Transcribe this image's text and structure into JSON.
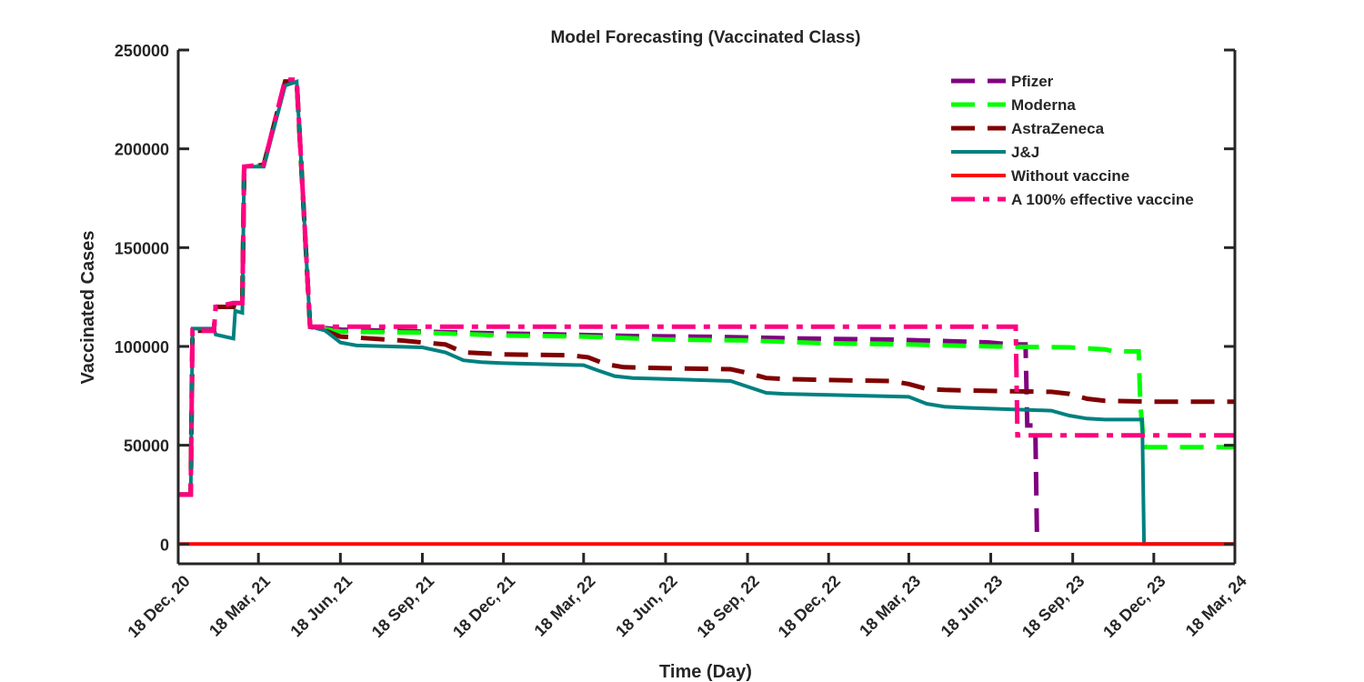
{
  "chart_data": {
    "type": "line",
    "title": "Model Forecasting (Vaccinated Class)",
    "xlabel": "Time (Day)",
    "ylabel": "Vaccinated Cases",
    "xlim": [
      0,
      1186
    ],
    "ylim": [
      -10000,
      250000
    ],
    "x_ticks": [
      {
        "x": 0,
        "label": "18 Dec, 20"
      },
      {
        "x": 90,
        "label": "18 Mar, 21"
      },
      {
        "x": 182,
        "label": "18 Jun, 21"
      },
      {
        "x": 274,
        "label": "18 Sep, 21"
      },
      {
        "x": 365,
        "label": "18 Dec, 21"
      },
      {
        "x": 455,
        "label": "18 Mar, 22"
      },
      {
        "x": 547,
        "label": "18 Jun, 22"
      },
      {
        "x": 639,
        "label": "18 Sep, 22"
      },
      {
        "x": 730,
        "label": "18 Dec, 22"
      },
      {
        "x": 820,
        "label": "18 Mar, 23"
      },
      {
        "x": 912,
        "label": "18 Jun, 23"
      },
      {
        "x": 1004,
        "label": "18 Sep, 23"
      },
      {
        "x": 1095,
        "label": "18 Dec, 23"
      },
      {
        "x": 1186,
        "label": "18 Mar, 24"
      }
    ],
    "y_ticks": [
      {
        "y": 0,
        "label": "0"
      },
      {
        "y": 50000,
        "label": "50000"
      },
      {
        "y": 100000,
        "label": "100000"
      },
      {
        "y": 150000,
        "label": "150000"
      },
      {
        "y": 200000,
        "label": "200000"
      },
      {
        "y": 250000,
        "label": "250000"
      }
    ],
    "legend_position": "top-right",
    "series": [
      {
        "name": "Pfizer",
        "color": "#800080",
        "style": "dashed",
        "x": [
          0,
          14,
          16,
          40,
          42,
          62,
          64,
          72,
          74,
          96,
          120,
          133,
          148,
          183,
          230,
          274,
          365,
          430,
          520,
          608,
          700,
          800,
          875,
          910,
          935,
          951,
          953,
          962,
          964
        ],
        "y": [
          25000,
          25000,
          108000,
          108000,
          120000,
          120000,
          120000,
          120000,
          190000,
          192000,
          234000,
          234000,
          110000,
          108500,
          108000,
          107500,
          106500,
          106000,
          105200,
          104800,
          104000,
          103500,
          102500,
          102000,
          101000,
          101000,
          60000,
          60000,
          0
        ]
      },
      {
        "name": "Moderna",
        "color": "#00ff00",
        "style": "dashed",
        "x": [
          0,
          14,
          16,
          40,
          42,
          62,
          64,
          72,
          74,
          96,
          120,
          133,
          148,
          183,
          274,
          365,
          455,
          547,
          639,
          730,
          820,
          912,
          1000,
          1040,
          1050,
          1078,
          1080,
          1084,
          1086,
          1186
        ],
        "y": [
          25000,
          25000,
          108000,
          108000,
          120000,
          120000,
          120000,
          120000,
          190000,
          192000,
          234000,
          234000,
          110000,
          107500,
          107000,
          105500,
          105000,
          103500,
          103000,
          101500,
          101000,
          100000,
          99500,
          98500,
          97500,
          97500,
          70000,
          50000,
          49000,
          49000
        ]
      },
      {
        "name": "AstraZeneca",
        "color": "#800000",
        "style": "dashed",
        "x": [
          0,
          14,
          16,
          40,
          42,
          62,
          64,
          72,
          74,
          96,
          120,
          133,
          148,
          165,
          182,
          250,
          274,
          300,
          320,
          365,
          440,
          460,
          480,
          500,
          547,
          620,
          640,
          660,
          680,
          730,
          800,
          820,
          840,
          860,
          912,
          980,
          1000,
          1020,
          1040,
          1095,
          1186
        ],
        "y": [
          25000,
          25000,
          108000,
          108000,
          120000,
          120000,
          122000,
          122000,
          190000,
          192000,
          234000,
          234000,
          110000,
          108000,
          105000,
          103000,
          102000,
          101000,
          97000,
          96000,
          95500,
          94500,
          91000,
          89500,
          89000,
          88500,
          86500,
          84000,
          83500,
          83000,
          82500,
          81000,
          78500,
          78000,
          77500,
          77000,
          76000,
          73500,
          72500,
          72000,
          72000
        ]
      },
      {
        "name": "J&J",
        "color": "#008080",
        "style": "solid",
        "x": [
          0,
          14,
          16,
          40,
          42,
          62,
          64,
          72,
          74,
          96,
          120,
          133,
          148,
          165,
          182,
          200,
          274,
          300,
          320,
          340,
          365,
          455,
          470,
          490,
          510,
          547,
          620,
          640,
          660,
          680,
          730,
          820,
          840,
          860,
          880,
          912,
          980,
          1000,
          1020,
          1040,
          1070,
          1082,
          1084,
          1186
        ],
        "y": [
          25000,
          25000,
          109000,
          109000,
          106000,
          104000,
          118000,
          117000,
          191000,
          191000,
          232000,
          234000,
          110000,
          108000,
          102000,
          100500,
          99500,
          97000,
          93000,
          92000,
          91500,
          90500,
          88000,
          85000,
          84000,
          83500,
          82500,
          79500,
          76500,
          76000,
          75500,
          74500,
          71000,
          69500,
          69000,
          68500,
          67500,
          65000,
          63500,
          63000,
          63000,
          63000,
          0,
          0
        ]
      },
      {
        "name": "Without vaccine",
        "color": "#ff0000",
        "style": "solid",
        "x": [
          0,
          1186
        ],
        "y": [
          0,
          0
        ]
      },
      {
        "name": "A 100% effective vaccine",
        "color": "#ff0080",
        "style": "dashdot",
        "x": [
          0,
          14,
          16,
          40,
          42,
          62,
          64,
          72,
          74,
          96,
          120,
          133,
          148,
          300,
          600,
          900,
          940,
          942,
          944,
          1186
        ],
        "y": [
          25000,
          25000,
          108000,
          108000,
          120000,
          122000,
          122000,
          122000,
          191000,
          192000,
          235000,
          235000,
          110000,
          110000,
          110000,
          110000,
          110000,
          55000,
          55000,
          55000
        ]
      }
    ]
  }
}
